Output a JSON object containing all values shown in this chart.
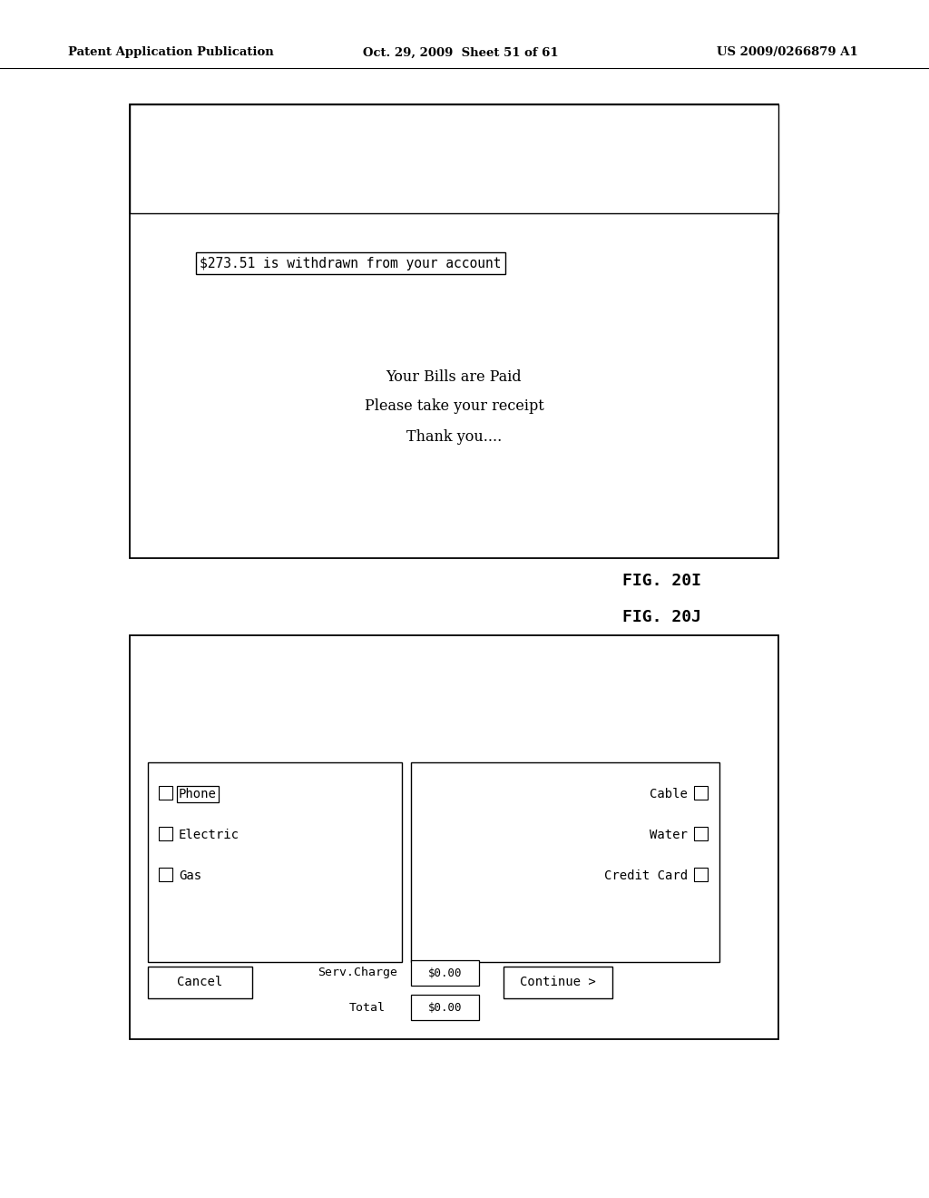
{
  "bg_color": "#ffffff",
  "header_text": "Patent Application Publication",
  "header_date": "Oct. 29, 2009  Sheet 51 of 61",
  "header_patent": "US 2009/0266879 A1",
  "fig20i_label": "FIG. 20I",
  "fig20j_label": "FIG. 20J",
  "fig20i": {
    "withdrawn_text": "$273.51 is withdrawn from your account",
    "body_text_line1": "Your Bills are Paid",
    "body_text_line2": "Please take your receipt",
    "body_text_line3": "Thank you...."
  },
  "fig20j": {
    "left_items": [
      "Phone",
      "Electric",
      "Gas"
    ],
    "right_items": [
      "Cable",
      "Water",
      "Credit Card"
    ]
  }
}
